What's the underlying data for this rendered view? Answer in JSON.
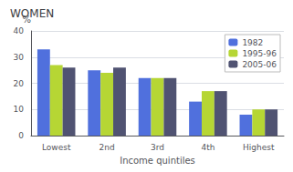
{
  "chart_data": {
    "type": "bar",
    "title": "WOMEN",
    "xlabel": "Income quintiles",
    "ylabel": "%",
    "categories": [
      "Lowest",
      "2nd",
      "3rd",
      "4th",
      "Highest"
    ],
    "series": [
      {
        "name": "1982",
        "values": [
          33,
          25,
          22,
          13,
          8
        ]
      },
      {
        "name": "1995-96",
        "values": [
          27,
          24,
          22,
          17,
          10
        ]
      },
      {
        "name": "2005-06",
        "values": [
          26,
          26,
          22,
          17,
          10
        ]
      }
    ],
    "ylim": [
      0,
      40
    ],
    "yticks": [
      0,
      10,
      20,
      30,
      40
    ],
    "grid": true,
    "legend": "upper right"
  }
}
